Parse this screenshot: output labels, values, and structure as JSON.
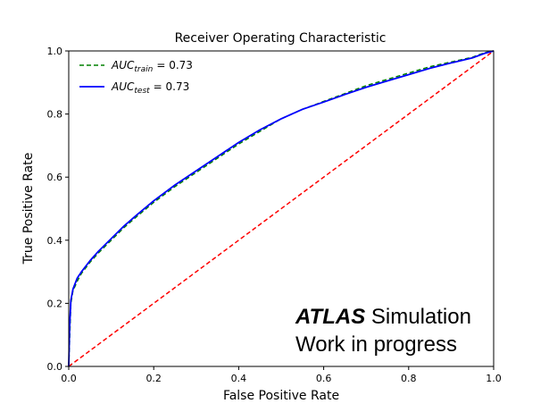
{
  "chart_data": {
    "type": "line",
    "title": "Receiver Operating Characteristic",
    "xlabel": "False Positive Rate",
    "ylabel": "True Positive Rate",
    "xlim": [
      0.0,
      1.0
    ],
    "ylim": [
      0.0,
      1.0
    ],
    "x_ticks": [
      "0.0",
      "0.2",
      "0.4",
      "0.6",
      "0.8",
      "1.0"
    ],
    "y_ticks": [
      "0.0",
      "0.2",
      "0.4",
      "0.6",
      "0.8",
      "1.0"
    ],
    "grid": false,
    "legend_position": "top-left",
    "series": [
      {
        "legend_main": "AUC",
        "legend_sub": "train",
        "legend_value": "= 0.73",
        "color": "#008000",
        "style": "dashed",
        "x": [
          0.0,
          0.005,
          0.01,
          0.02,
          0.03,
          0.05,
          0.07,
          0.1,
          0.13,
          0.16,
          0.2,
          0.25,
          0.3,
          0.35,
          0.4,
          0.45,
          0.5,
          0.55,
          0.6,
          0.65,
          0.7,
          0.75,
          0.8,
          0.85,
          0.9,
          0.95,
          0.98,
          1.0
        ],
        "y": [
          0.0,
          0.2,
          0.24,
          0.27,
          0.295,
          0.33,
          0.36,
          0.4,
          0.44,
          0.475,
          0.52,
          0.57,
          0.615,
          0.66,
          0.705,
          0.745,
          0.785,
          0.815,
          0.84,
          0.865,
          0.89,
          0.91,
          0.93,
          0.95,
          0.965,
          0.98,
          0.995,
          1.0
        ]
      },
      {
        "legend_main": "AUC",
        "legend_sub": "test",
        "legend_value": "= 0.73",
        "color": "#0000ff",
        "style": "solid",
        "x": [
          0.0,
          0.002,
          0.005,
          0.01,
          0.02,
          0.03,
          0.05,
          0.07,
          0.1,
          0.13,
          0.16,
          0.2,
          0.25,
          0.3,
          0.35,
          0.4,
          0.45,
          0.5,
          0.55,
          0.6,
          0.65,
          0.7,
          0.75,
          0.8,
          0.85,
          0.9,
          0.95,
          0.98,
          1.0
        ],
        "y": [
          0.0,
          0.12,
          0.21,
          0.245,
          0.28,
          0.3,
          0.335,
          0.365,
          0.405,
          0.445,
          0.48,
          0.525,
          0.575,
          0.62,
          0.665,
          0.71,
          0.75,
          0.785,
          0.815,
          0.838,
          0.862,
          0.885,
          0.905,
          0.925,
          0.945,
          0.962,
          0.978,
          0.993,
          1.0
        ]
      },
      {
        "color": "#ff0000",
        "style": "dashed",
        "x": [
          0.0,
          1.0
        ],
        "y": [
          0.0,
          1.0
        ]
      }
    ],
    "annotation": {
      "bold": "ATLAS",
      "line1_rest": " Simulation",
      "line2": "Work in progress"
    }
  }
}
